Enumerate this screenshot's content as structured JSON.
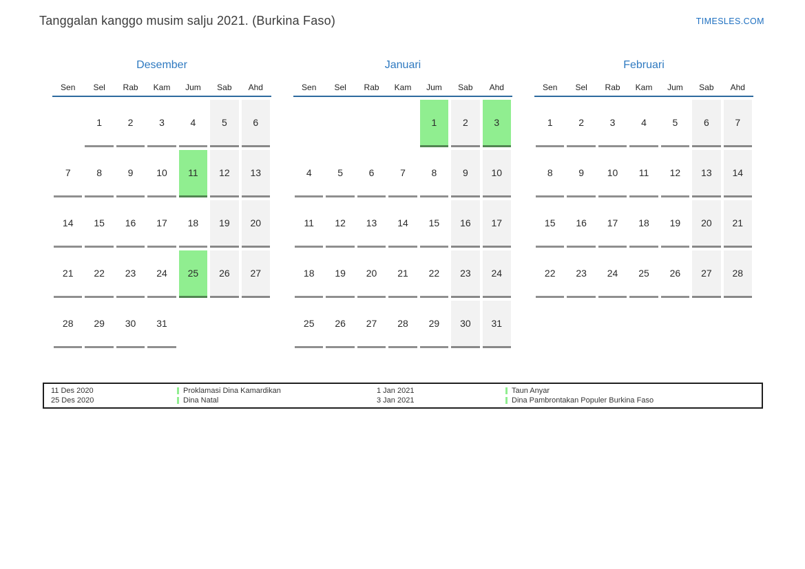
{
  "page": {
    "title": "Tanggalan kanggo musim salju 2021. (Burkina Faso)",
    "brand": "TIMESLES.COM"
  },
  "colors": {
    "accent_blue": "#2e79c0",
    "header_line": "#2d6a9e",
    "brand_blue": "#1d6fc0",
    "holiday_green": "#90ee90",
    "weekend_gray": "#f2f2f2"
  },
  "weekdays": [
    "Sen",
    "Sel",
    "Rab",
    "Kam",
    "Jum",
    "Sab",
    "Ahd"
  ],
  "months": [
    {
      "name": "Desember",
      "holidays": [
        11,
        25
      ],
      "weeks": [
        [
          "",
          1,
          2,
          3,
          4,
          5,
          6
        ],
        [
          7,
          8,
          9,
          10,
          11,
          12,
          13
        ],
        [
          14,
          15,
          16,
          17,
          18,
          19,
          20
        ],
        [
          21,
          22,
          23,
          24,
          25,
          26,
          27
        ],
        [
          28,
          29,
          30,
          31,
          "",
          "",
          ""
        ]
      ]
    },
    {
      "name": "Januari",
      "holidays": [
        1,
        3
      ],
      "weeks": [
        [
          "",
          "",
          "",
          "",
          1,
          2,
          3
        ],
        [
          4,
          5,
          6,
          7,
          8,
          9,
          10
        ],
        [
          11,
          12,
          13,
          14,
          15,
          16,
          17
        ],
        [
          18,
          19,
          20,
          21,
          22,
          23,
          24
        ],
        [
          25,
          26,
          27,
          28,
          29,
          30,
          31
        ]
      ]
    },
    {
      "name": "Februari",
      "holidays": [],
      "weeks": [
        [
          1,
          2,
          3,
          4,
          5,
          6,
          7
        ],
        [
          8,
          9,
          10,
          11,
          12,
          13,
          14
        ],
        [
          15,
          16,
          17,
          18,
          19,
          20,
          21
        ],
        [
          22,
          23,
          24,
          25,
          26,
          27,
          28
        ]
      ]
    }
  ],
  "legend": {
    "entries": [
      {
        "date": "11 Des 2020",
        "name": "Proklamasi Dina Kamardikan"
      },
      {
        "date": "25 Des 2020",
        "name": "Dina Natal"
      },
      {
        "date": "1 Jan 2021",
        "name": "Taun Anyar"
      },
      {
        "date": "3 Jan 2021",
        "name": "Dina Pambrontakan Populer Burkina Faso"
      }
    ]
  }
}
